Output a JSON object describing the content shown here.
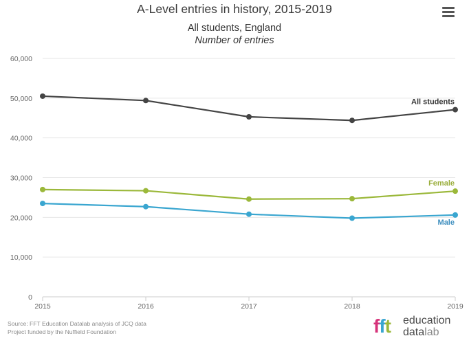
{
  "header": {
    "title": "A-Level entries in history, 2015-2019",
    "subtitle": "All students, England",
    "subtitle2": "Number of entries",
    "menu_icon": "hamburger-menu-icon"
  },
  "chart_data": {
    "type": "line",
    "title": "A-Level entries in history, 2015-2019",
    "subtitle": "All students, England — Number of entries",
    "xlabel": "",
    "ylabel": "",
    "x": [
      "2015",
      "2016",
      "2017",
      "2018",
      "2019"
    ],
    "ylim": [
      0,
      60000
    ],
    "yticks": [
      0,
      10000,
      20000,
      30000,
      40000,
      50000,
      60000
    ],
    "ytick_labels": [
      "0",
      "10,000",
      "20,000",
      "30,000",
      "40,000",
      "50,000",
      "60,000"
    ],
    "grid": true,
    "legend": "inline-end-labels",
    "series": [
      {
        "name": "All students",
        "color": "#444444",
        "label_color": "#333333",
        "values": [
          50500,
          49400,
          45300,
          44400,
          47100
        ]
      },
      {
        "name": "Female",
        "color": "#9bb83a",
        "label_color": "#9aae3c",
        "values": [
          27000,
          26700,
          24600,
          24700,
          26600
        ]
      },
      {
        "name": "Male",
        "color": "#3aa6d0",
        "label_color": "#3f8fbf",
        "values": [
          23500,
          22700,
          20800,
          19800,
          20600
        ]
      }
    ]
  },
  "footer": {
    "source_line1": "Source: FFT Education Datalab analysis of JCQ data",
    "source_line2": "Project funded by the Nuffield Foundation"
  },
  "logo": {
    "mark_letters": [
      "f",
      "f",
      "t"
    ],
    "mark_colors": [
      "#d6337a",
      "#3aa6d0",
      "#9bb83a"
    ],
    "word1": "education",
    "word2_bold": "data",
    "word2_light": "lab"
  }
}
